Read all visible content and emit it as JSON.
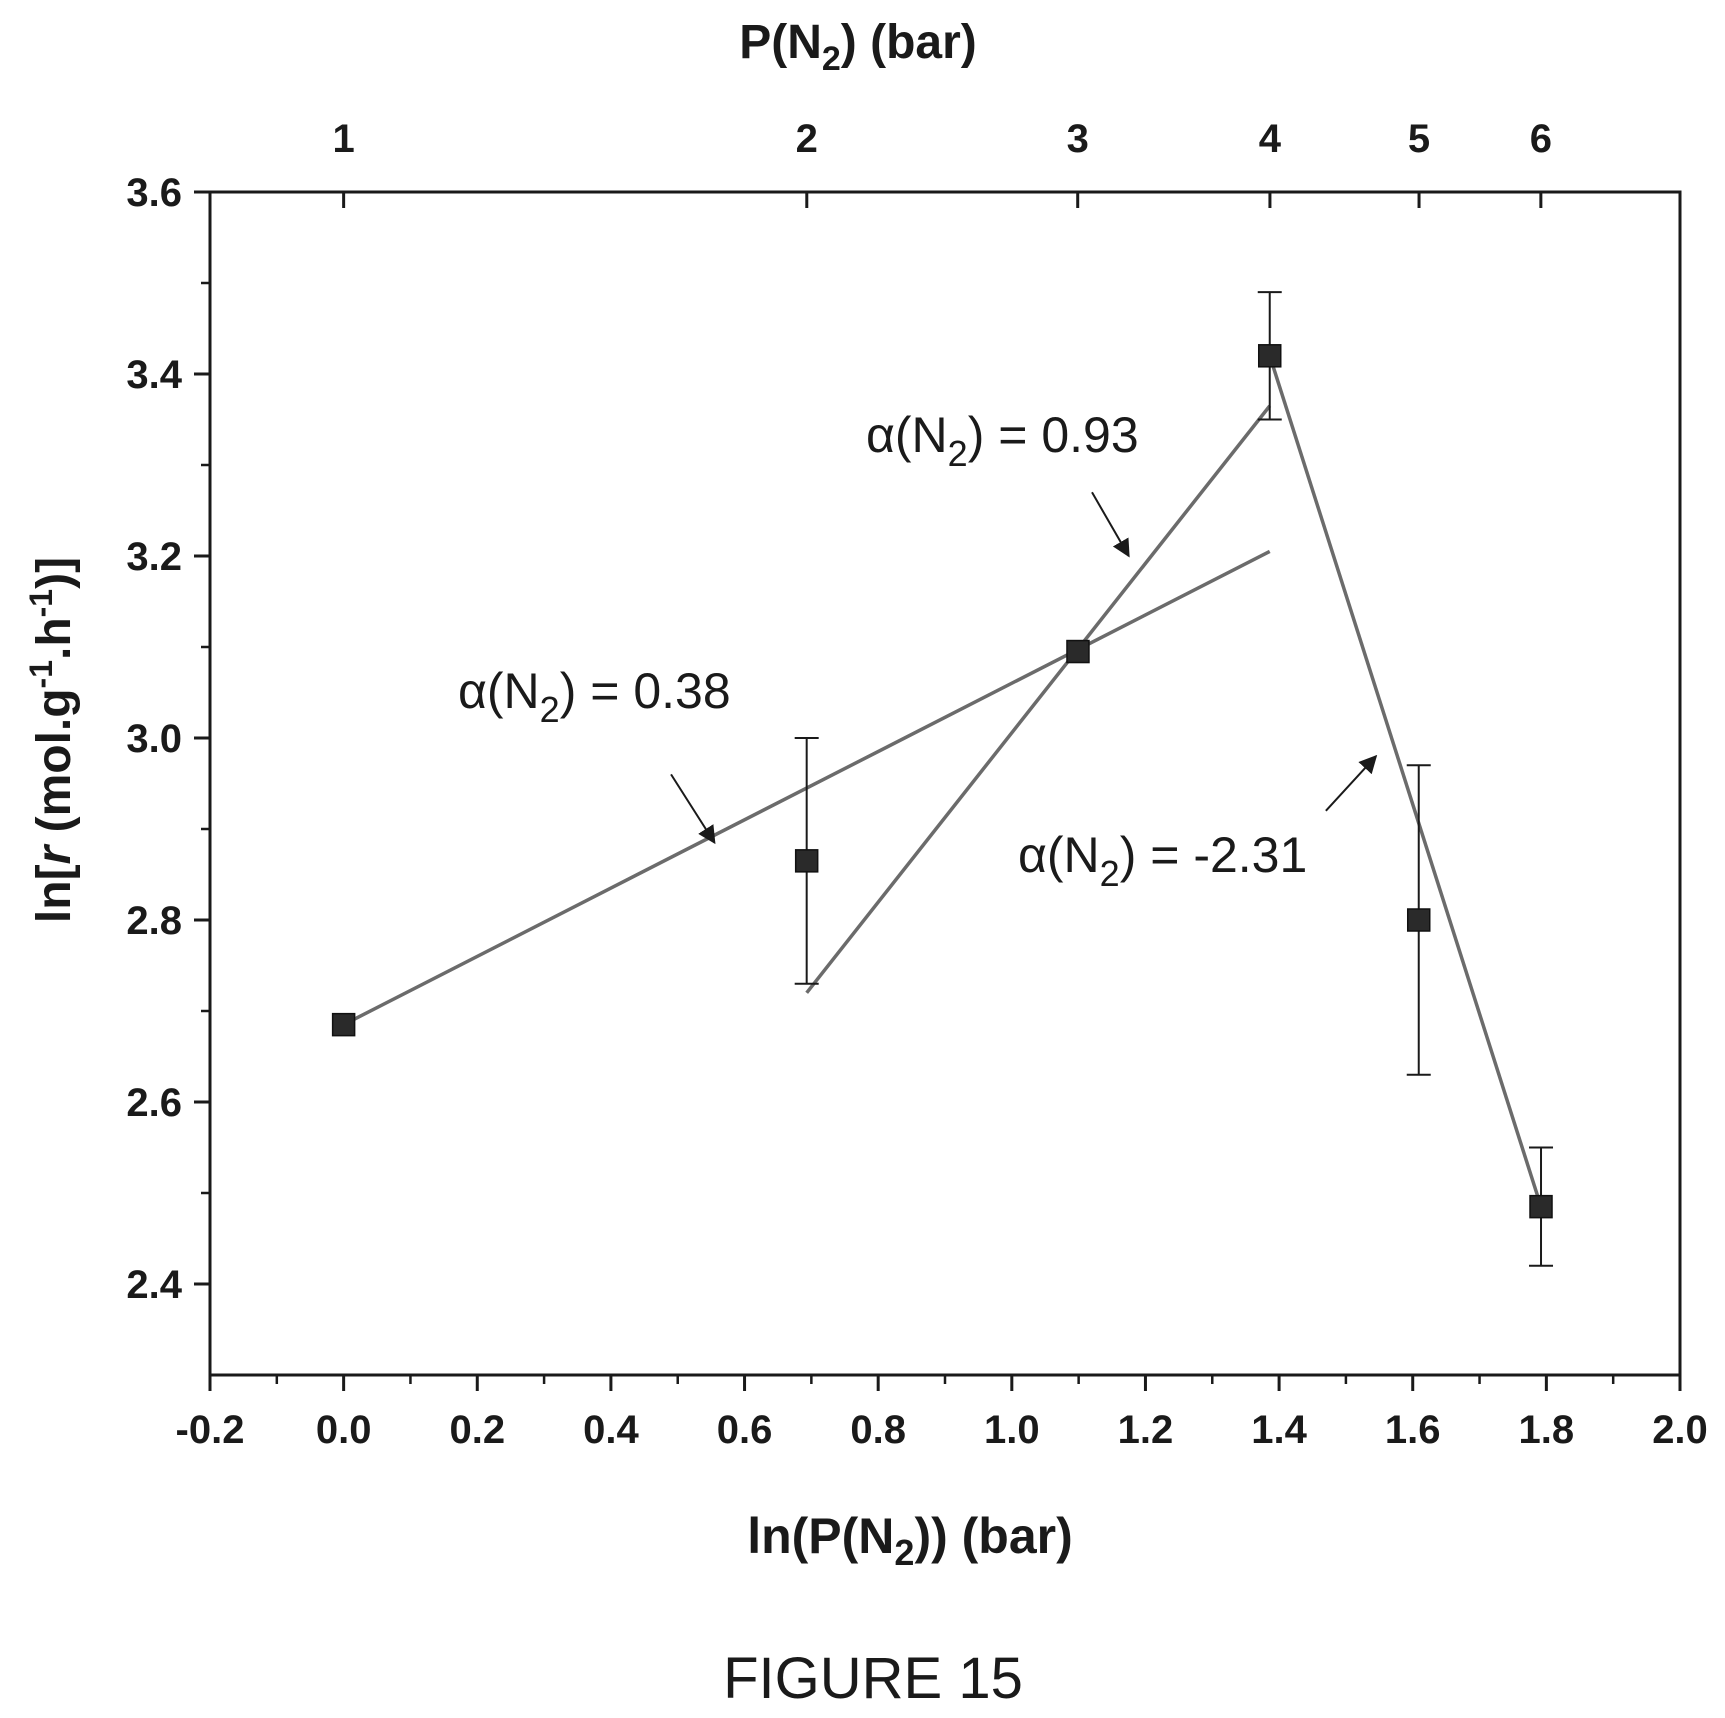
{
  "chart_data": {
    "type": "scatter",
    "x_axis": {
      "label_prefix": "ln(P(N",
      "label_sub": "2",
      "label_suffix": ")) (bar)",
      "range": [
        -0.2,
        2.0
      ],
      "ticks": [
        -0.2,
        0.0,
        0.2,
        0.4,
        0.6,
        0.8,
        1.0,
        1.2,
        1.4,
        1.6,
        1.8,
        2.0
      ],
      "tick_labels": [
        "-0.2",
        "0.0",
        "0.2",
        "0.4",
        "0.6",
        "0.8",
        "1.0",
        "1.2",
        "1.4",
        "1.6",
        "1.8",
        "2.0"
      ]
    },
    "top_axis": {
      "label_prefix": "P(N",
      "label_sub": "2",
      "label_suffix": ") (bar)",
      "scale": "log",
      "ticks": [
        1,
        2,
        3,
        4,
        5,
        6
      ],
      "tick_labels": [
        "1",
        "2",
        "3",
        "4",
        "5",
        "6"
      ]
    },
    "y_axis": {
      "label_parts": [
        "ln[",
        "r",
        " (mol.g",
        "-1",
        ".h",
        "-1",
        ")]"
      ],
      "range": [
        2.3,
        3.6
      ],
      "ticks": [
        2.4,
        2.6,
        2.8,
        3.0,
        3.2,
        3.4,
        3.6
      ],
      "tick_labels": [
        "2.4",
        "2.6",
        "2.8",
        "3.0",
        "3.2",
        "3.4",
        "3.6"
      ]
    },
    "points": [
      {
        "x": 0.0,
        "y": 2.685,
        "err": 0.0
      },
      {
        "x": 0.693,
        "y": 2.865,
        "err_low": 0.135,
        "err_high": 0.135
      },
      {
        "x": 1.099,
        "y": 3.095,
        "err": 0.0
      },
      {
        "x": 1.386,
        "y": 3.42,
        "err_low": 0.07,
        "err_high": 0.07
      },
      {
        "x": 1.609,
        "y": 2.8,
        "err_low": 0.17,
        "err_high": 0.17
      },
      {
        "x": 1.792,
        "y": 2.485,
        "err_low": 0.065,
        "err_high": 0.065
      }
    ],
    "fit_lines": [
      {
        "x1": 0.0,
        "y1": 2.685,
        "x2": 1.386,
        "y2": 3.205
      },
      {
        "x1": 0.693,
        "y1": 2.72,
        "x2": 1.386,
        "y2": 3.365
      },
      {
        "x1": 1.386,
        "y1": 3.42,
        "x2": 1.792,
        "y2": 2.485
      }
    ],
    "annotations": [
      {
        "prefix": "α(N",
        "sub": "2",
        "suffix": ") = 0.38",
        "arrow_from": [
          0.49,
          2.96
        ],
        "arrow_to": [
          0.555,
          2.885
        ]
      },
      {
        "prefix": "α(N",
        "sub": "2",
        "suffix": ") = 0.93",
        "arrow_from": [
          1.12,
          3.27
        ],
        "arrow_to": [
          1.175,
          3.2
        ]
      },
      {
        "prefix": "α(N",
        "sub": "2",
        "suffix": ") = -2.31",
        "arrow_from": [
          1.47,
          2.92
        ],
        "arrow_to": [
          1.545,
          2.98
        ]
      }
    ]
  },
  "caption": "FIGURE 15"
}
